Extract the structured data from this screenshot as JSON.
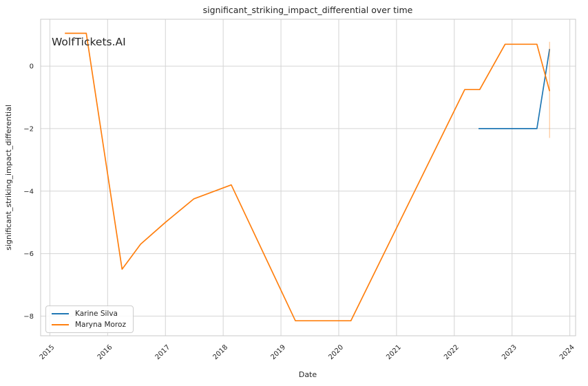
{
  "watermark": {
    "text": "WolfTickets.AI",
    "color": "#c6c6c6"
  },
  "colors": {
    "background": "#ffffff",
    "grid": "#d4d4d4",
    "spine": "#c9c9c9",
    "text": "#262626",
    "series_blue": "#1f77b4",
    "series_orange": "#ff7f0e"
  },
  "chart_data": {
    "type": "line",
    "title": "significant_striking_impact_differential over time",
    "xlabel": "Date",
    "ylabel": "significant_striking_impact_differential",
    "grid": true,
    "legend_position": "lower-left",
    "xlim": [
      2014.84,
      2024.1
    ],
    "ylim": [
      -8.63,
      1.5
    ],
    "x_ticks": [
      {
        "value": 2015,
        "label": "2015"
      },
      {
        "value": 2016,
        "label": "2016"
      },
      {
        "value": 2017,
        "label": "2017"
      },
      {
        "value": 2018,
        "label": "2018"
      },
      {
        "value": 2019,
        "label": "2019"
      },
      {
        "value": 2020,
        "label": "2020"
      },
      {
        "value": 2021,
        "label": "2021"
      },
      {
        "value": 2022,
        "label": "2022"
      },
      {
        "value": 2023,
        "label": "2023"
      },
      {
        "value": 2024,
        "label": "2024"
      }
    ],
    "y_ticks": [
      {
        "value": 0,
        "label": "0"
      },
      {
        "value": -2,
        "label": "−2"
      },
      {
        "value": -4,
        "label": "−4"
      },
      {
        "value": -6,
        "label": "−6"
      },
      {
        "value": -8,
        "label": "−8"
      }
    ],
    "series": [
      {
        "name": "Karine Silva",
        "color": "#1f77b4",
        "points": [
          [
            2022.42,
            -2.0
          ],
          [
            2023.43,
            -2.0
          ],
          [
            2023.65,
            0.55
          ]
        ]
      },
      {
        "name": "Maryna Moroz",
        "color": "#ff7f0e",
        "points": [
          [
            2015.26,
            1.05
          ],
          [
            2015.63,
            1.05
          ],
          [
            2016.25,
            -6.5
          ],
          [
            2016.57,
            -5.7
          ],
          [
            2017.0,
            -5.0
          ],
          [
            2017.49,
            -4.25
          ],
          [
            2018.14,
            -3.8
          ],
          [
            2019.25,
            -8.15
          ],
          [
            2020.21,
            -8.15
          ],
          [
            2022.18,
            -0.75
          ],
          [
            2022.44,
            -0.75
          ],
          [
            2022.88,
            0.7
          ],
          [
            2023.43,
            0.7
          ],
          [
            2023.65,
            -0.8
          ]
        ],
        "error_bar": {
          "x": 2023.65,
          "y_min": -2.3,
          "y_max": 0.78,
          "opacity": 0.35
        }
      }
    ]
  }
}
